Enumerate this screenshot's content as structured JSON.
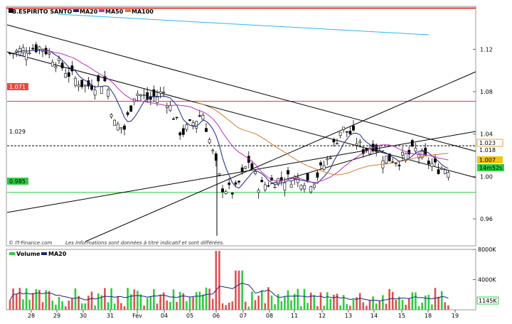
{
  "chart_data": [
    {
      "type": "candlestick",
      "legend": [
        {
          "name": "B.ESPIRITO SANTO",
          "color": "#000000"
        },
        {
          "name": "MA20",
          "color": "#1a237e"
        },
        {
          "name": "MA50",
          "color": "#b832b8"
        },
        {
          "name": "MA100",
          "color": "#d27d2d"
        }
      ],
      "x_tick_labels": [
        "28",
        "29",
        "30",
        "31",
        "Fév",
        "04",
        "05",
        "06",
        "07",
        "08",
        "11",
        "12",
        "13",
        "14",
        "15",
        "18",
        "19"
      ],
      "y_tick_labels": [
        "1.12",
        "1.08",
        "1.04",
        "1.00",
        "0.96"
      ],
      "ylim": [
        0.9345,
        1.1605
      ],
      "price_tags": [
        {
          "label": "1.071",
          "value": 1.071,
          "color": "#e74c3c"
        },
        {
          "label": "1.029",
          "value": 1.029,
          "color": "#ffffff"
        },
        {
          "label": "0.985",
          "value": 0.985,
          "color": "#2ecc40"
        }
      ],
      "right_tags": [
        {
          "label": "1.023",
          "value": 1.023,
          "color": "#e6a24a"
        },
        {
          "label": "1.018",
          "value": 1.018,
          "color": "#ffffff"
        },
        {
          "label": "1.007",
          "value": 1.007,
          "color": "#f1c40f"
        },
        {
          "label": "14m52s",
          "color": "#2ecc40"
        }
      ],
      "copyright": "© IT-Finance.com",
      "disclaimer": "Les informations sont données à titre indicatif et sont différées.",
      "colors": {
        "up": "#2e7d32",
        "down": "#b71c1c",
        "ma20": "#1a237e",
        "ma50": "#b832b8",
        "ma100": "#d27d2d",
        "resistance": "#e53935",
        "support": "#2ecc40",
        "trendline": "#000000",
        "cyan_line": "#29b6f6"
      }
    },
    {
      "type": "bar",
      "legend": [
        {
          "name": "Volume",
          "color": "#2ecc40"
        },
        {
          "name": "MA20",
          "color": "#1a237e"
        }
      ],
      "y_tick_labels": [
        "8000K",
        "4000K"
      ],
      "ylim": [
        0,
        8000
      ],
      "last_value_label": "1145K"
    }
  ]
}
